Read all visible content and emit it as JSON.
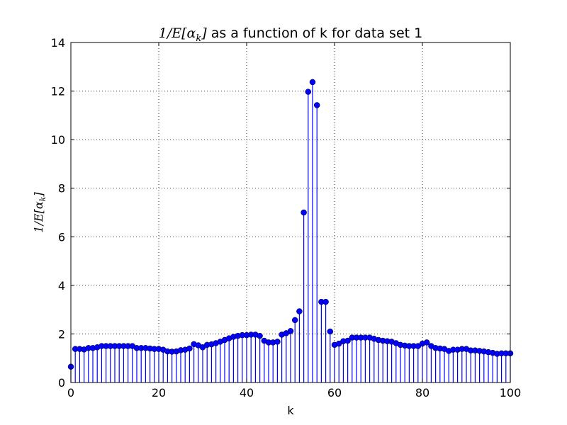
{
  "chart_data": {
    "type": "stem",
    "title": {
      "math": "1/E[α",
      "math_sub": "k",
      "math_close": "]",
      "text": " as a function of k for data set 1"
    },
    "xlabel": "k",
    "ylabel": {
      "math": "1/E[α",
      "math_sub": "k",
      "math_close": "]"
    },
    "xlim": [
      0,
      100
    ],
    "ylim": [
      0,
      14
    ],
    "xticks": [
      0,
      20,
      40,
      60,
      80,
      100
    ],
    "yticks": [
      0,
      2,
      4,
      6,
      8,
      10,
      12,
      14
    ],
    "grid": true,
    "color": "#0000ff",
    "x": [
      0,
      1,
      2,
      3,
      4,
      5,
      6,
      7,
      8,
      9,
      10,
      11,
      12,
      13,
      14,
      15,
      16,
      17,
      18,
      19,
      20,
      21,
      22,
      23,
      24,
      25,
      26,
      27,
      28,
      29,
      30,
      31,
      32,
      33,
      34,
      35,
      36,
      37,
      38,
      39,
      40,
      41,
      42,
      43,
      44,
      45,
      46,
      47,
      48,
      49,
      50,
      51,
      52,
      53,
      54,
      55,
      56,
      57,
      58,
      59,
      60,
      61,
      62,
      63,
      64,
      65,
      66,
      67,
      68,
      69,
      70,
      71,
      72,
      73,
      74,
      75,
      76,
      77,
      78,
      79,
      80,
      81,
      82,
      83,
      84,
      85,
      86,
      87,
      88,
      89,
      90,
      91,
      92,
      93,
      94,
      95,
      96,
      97,
      98,
      99,
      100
    ],
    "values": [
      0.65,
      1.38,
      1.38,
      1.36,
      1.42,
      1.42,
      1.45,
      1.5,
      1.5,
      1.5,
      1.5,
      1.5,
      1.5,
      1.5,
      1.5,
      1.42,
      1.42,
      1.42,
      1.4,
      1.38,
      1.38,
      1.35,
      1.28,
      1.27,
      1.28,
      1.33,
      1.35,
      1.4,
      1.58,
      1.53,
      1.45,
      1.55,
      1.57,
      1.62,
      1.68,
      1.75,
      1.82,
      1.88,
      1.92,
      1.95,
      1.95,
      1.97,
      1.97,
      1.92,
      1.72,
      1.65,
      1.65,
      1.68,
      1.97,
      2.03,
      2.12,
      2.57,
      2.93,
      7.0,
      11.97,
      12.37,
      11.42,
      3.32,
      3.32,
      2.1,
      1.55,
      1.6,
      1.7,
      1.72,
      1.85,
      1.85,
      1.85,
      1.85,
      1.85,
      1.8,
      1.75,
      1.72,
      1.7,
      1.68,
      1.62,
      1.55,
      1.52,
      1.5,
      1.5,
      1.5,
      1.6,
      1.65,
      1.5,
      1.42,
      1.4,
      1.38,
      1.3,
      1.35,
      1.35,
      1.38,
      1.38,
      1.32,
      1.32,
      1.3,
      1.28,
      1.25,
      1.22,
      1.18,
      1.2,
      1.2,
      1.2
    ]
  }
}
